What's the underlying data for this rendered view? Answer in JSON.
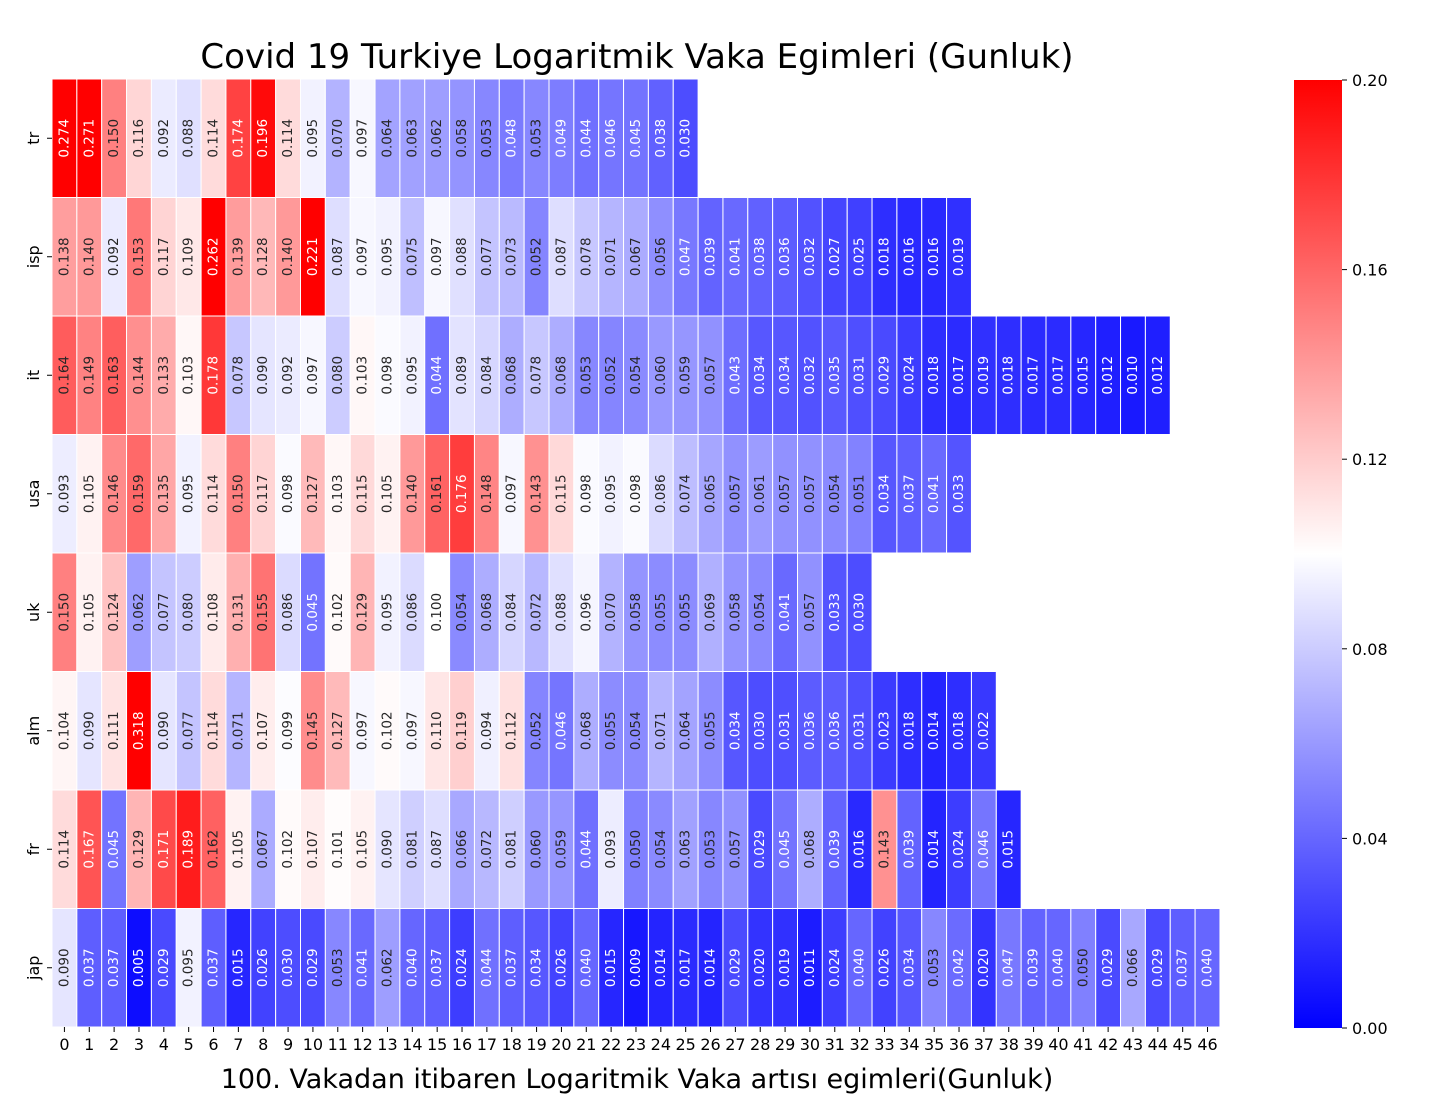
{
  "chart_data": {
    "type": "heatmap",
    "title": "Covid 19 Turkiye Logaritmik Vaka Egimleri (Gunluk)",
    "xlabel": "100. Vakadan itibaren Logaritmik Vaka artısı egimleri(Gunluk)",
    "ylabel": "",
    "rows": [
      "tr",
      "isp",
      "it",
      "usa",
      "uk",
      "alm",
      "fr",
      "jap"
    ],
    "columns": [
      0,
      1,
      2,
      3,
      4,
      5,
      6,
      7,
      8,
      9,
      10,
      11,
      12,
      13,
      14,
      15,
      16,
      17,
      18,
      19,
      20,
      21,
      22,
      23,
      24,
      25,
      26,
      27,
      28,
      29,
      30,
      31,
      32,
      33,
      34,
      35,
      36,
      37,
      38,
      39,
      40,
      41,
      42,
      43,
      44,
      45,
      46
    ],
    "values": [
      [
        0.274,
        0.271,
        0.15,
        0.116,
        0.092,
        0.088,
        0.114,
        0.174,
        0.196,
        0.114,
        0.095,
        0.07,
        0.097,
        0.064,
        0.063,
        0.062,
        0.058,
        0.053,
        0.048,
        0.053,
        0.049,
        0.044,
        0.046,
        0.045,
        0.038,
        0.03
      ],
      [
        0.138,
        0.14,
        0.092,
        0.153,
        0.117,
        0.109,
        0.262,
        0.139,
        0.128,
        0.14,
        0.221,
        0.087,
        0.097,
        0.095,
        0.075,
        0.097,
        0.088,
        0.077,
        0.073,
        0.052,
        0.087,
        0.078,
        0.071,
        0.067,
        0.056,
        0.047,
        0.039,
        0.041,
        0.038,
        0.036,
        0.032,
        0.027,
        0.025,
        0.018,
        0.016,
        0.016,
        0.019
      ],
      [
        0.164,
        0.149,
        0.163,
        0.144,
        0.133,
        0.103,
        0.178,
        0.078,
        0.09,
        0.092,
        0.097,
        0.08,
        0.103,
        0.098,
        0.095,
        0.044,
        0.089,
        0.084,
        0.068,
        0.078,
        0.068,
        0.053,
        0.052,
        0.054,
        0.06,
        0.059,
        0.057,
        0.043,
        0.034,
        0.034,
        0.032,
        0.035,
        0.031,
        0.029,
        0.024,
        0.018,
        0.017,
        0.019,
        0.018,
        0.017,
        0.017,
        0.015,
        0.012,
        0.01,
        0.012
      ],
      [
        0.093,
        0.105,
        0.146,
        0.159,
        0.135,
        0.095,
        0.114,
        0.15,
        0.117,
        0.098,
        0.127,
        0.103,
        0.115,
        0.105,
        0.14,
        0.161,
        0.176,
        0.148,
        0.097,
        0.143,
        0.115,
        0.098,
        0.095,
        0.098,
        0.086,
        0.074,
        0.065,
        0.057,
        0.061,
        0.057,
        0.057,
        0.054,
        0.051,
        0.034,
        0.037,
        0.041,
        0.033
      ],
      [
        0.15,
        0.105,
        0.124,
        0.062,
        0.077,
        0.08,
        0.108,
        0.131,
        0.155,
        0.086,
        0.045,
        0.102,
        0.129,
        0.095,
        0.086,
        0.1,
        0.054,
        0.068,
        0.084,
        0.072,
        0.088,
        0.096,
        0.07,
        0.058,
        0.055,
        0.055,
        0.069,
        0.058,
        0.054,
        0.041,
        0.057,
        0.033,
        0.03
      ],
      [
        0.104,
        0.09,
        0.111,
        0.318,
        0.09,
        0.077,
        0.114,
        0.071,
        0.107,
        0.099,
        0.145,
        0.127,
        0.097,
        0.102,
        0.097,
        0.11,
        0.119,
        0.094,
        0.112,
        0.052,
        0.046,
        0.068,
        0.055,
        0.054,
        0.071,
        0.064,
        0.055,
        0.034,
        0.03,
        0.031,
        0.036,
        0.036,
        0.031,
        0.023,
        0.018,
        0.014,
        0.018,
        0.022
      ],
      [
        0.114,
        0.167,
        0.045,
        0.129,
        0.171,
        0.189,
        0.162,
        0.105,
        0.067,
        0.102,
        0.107,
        0.101,
        0.105,
        0.09,
        0.081,
        0.087,
        0.066,
        0.072,
        0.081,
        0.06,
        0.059,
        0.044,
        0.093,
        0.05,
        0.054,
        0.063,
        0.053,
        0.057,
        0.029,
        0.045,
        0.068,
        0.039,
        0.016,
        0.143,
        0.039,
        0.014,
        0.024,
        0.046,
        0.015
      ],
      [
        0.09,
        0.037,
        0.037,
        0.005,
        0.029,
        0.095,
        0.037,
        0.015,
        0.026,
        0.03,
        0.029,
        0.053,
        0.041,
        0.062,
        0.04,
        0.037,
        0.024,
        0.044,
        0.037,
        0.034,
        0.026,
        0.04,
        0.015,
        0.009,
        0.014,
        0.017,
        0.014,
        0.029,
        0.02,
        0.019,
        0.011,
        0.024,
        0.04,
        0.026,
        0.034,
        0.053,
        0.042,
        0.02,
        0.047,
        0.039,
        0.04,
        0.05,
        0.029,
        0.066,
        0.029,
        0.037,
        0.04
      ]
    ],
    "vmin": 0.0,
    "vmax": 0.2,
    "colormap": [
      "#0000ff",
      "#ffffff",
      "#ff0000"
    ],
    "colorbar_ticks": [
      0.0,
      0.04,
      0.08,
      0.12,
      0.16,
      0.2
    ],
    "colorbar_tick_labels": [
      "0.00",
      "0.04",
      "0.08",
      "0.12",
      "0.16",
      "0.20"
    ],
    "value_format_decimals": 3
  }
}
